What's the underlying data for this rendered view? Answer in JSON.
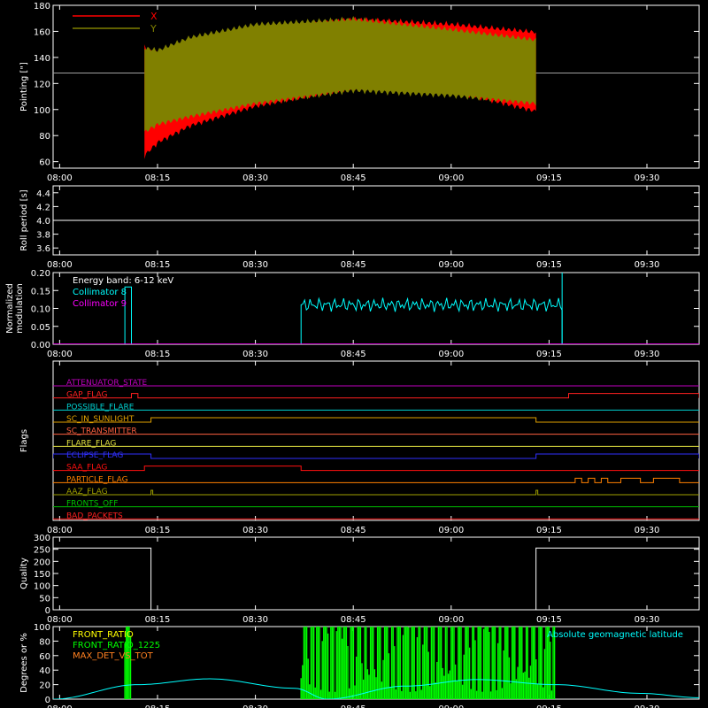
{
  "colors": {
    "background": "#000000",
    "axes": "#ffffff",
    "red": "#ff0000",
    "olive": "#808000",
    "cyan": "#00ffff",
    "magenta": "#ff00ff",
    "green": "#00ff00",
    "orange": "#ff8020",
    "yellow": "#ffff00",
    "blue": "#0000ff",
    "flag_purple": "#c000c0",
    "flag_red": "#ff2020",
    "flag_teal": "#00d0d0",
    "flag_amber": "#e0a000",
    "flag_salmon": "#ff6040",
    "flag_yellow": "#e0e040",
    "flag_blue": "#3030ff",
    "flag_orange": "#ff8000",
    "flag_olive": "#a0a000",
    "flag_green": "#00c000",
    "flag_red2": "#ff1010"
  },
  "time_ticks": [
    "08:00",
    "08:15",
    "08:30",
    "08:45",
    "09:00",
    "09:15",
    "09:30"
  ],
  "chart_data": [
    {
      "id": "pointing",
      "type": "area",
      "ylabel": "Pointing [\"]",
      "ylim": [
        55,
        180
      ],
      "yticks": [
        60,
        80,
        100,
        120,
        140,
        160,
        180
      ],
      "reference_line": 128,
      "legend_position": "top-left",
      "x_range": [
        "07:59",
        "09:38"
      ],
      "series": [
        {
          "name": "X",
          "color": "red",
          "x": [
            "08:13",
            "08:15",
            "08:20",
            "08:30",
            "08:45",
            "09:00",
            "09:13"
          ],
          "upper": [
            150,
            145,
            150,
            163,
            172,
            168,
            162
          ],
          "lower": [
            62,
            72,
            85,
            100,
            114,
            112,
            96
          ]
        },
        {
          "name": "Y",
          "color": "olive",
          "x": [
            "08:13",
            "08:15",
            "08:20",
            "08:30",
            "08:45",
            "09:00",
            "09:13"
          ],
          "upper": [
            150,
            148,
            158,
            168,
            172,
            164,
            156
          ],
          "lower": [
            80,
            86,
            92,
            102,
            112,
            108,
            102
          ]
        }
      ]
    },
    {
      "id": "roll",
      "type": "line",
      "ylabel": "Roll period [s]",
      "ylim": [
        3.5,
        4.5
      ],
      "yticks": [
        3.6,
        3.8,
        4.0,
        4.2,
        4.4
      ],
      "x_range": [
        "07:59",
        "09:38"
      ],
      "series": [
        {
          "name": "",
          "color": "axes",
          "x": [
            "07:59",
            "09:38"
          ],
          "y": [
            4.0,
            4.0
          ]
        }
      ]
    },
    {
      "id": "modulation",
      "type": "line",
      "ylabel": "Normalized modulation",
      "ylim": [
        0,
        0.2
      ],
      "yticks": [
        0.0,
        0.05,
        0.1,
        0.15,
        0.2
      ],
      "annotation": "Energy band: 6-12 keV",
      "x_range": [
        "07:59",
        "09:38"
      ],
      "series": [
        {
          "name": "Collimator 8",
          "color": "cyan",
          "segments": [
            {
              "x": [
                "08:10",
                "08:10",
                "08:11",
                "08:11"
              ],
              "y": [
                0,
                0.16,
                0.16,
                0
              ]
            },
            {
              "x": [
                "08:37",
                "08:37",
                "09:17",
                "09:17"
              ],
              "y": [
                0,
                0.11,
                0.11,
                0
              ]
            }
          ],
          "noise_amplitude": 0.02,
          "spike": {
            "x": "09:17",
            "y": 0.2
          }
        },
        {
          "name": "Collimator 9",
          "color": "magenta",
          "x": [
            "07:59",
            "09:38"
          ],
          "y": [
            0,
            0
          ]
        }
      ]
    },
    {
      "id": "flags",
      "type": "line",
      "ylabel": "Flags",
      "x_range": [
        "07:59",
        "09:38"
      ],
      "flags": [
        {
          "name": "ATTENUATOR_STATE",
          "color": "flag_purple",
          "steps": []
        },
        {
          "name": "GAP_FLAG",
          "color": "flag_red",
          "steps": [
            {
              "from": "08:11",
              "to": "08:12"
            },
            {
              "from": "09:18",
              "to": "09:38"
            }
          ]
        },
        {
          "name": "POSSIBLE_FLARE",
          "color": "flag_teal",
          "steps": []
        },
        {
          "name": "SC_IN_SUNLIGHT",
          "color": "flag_amber",
          "steps": [
            {
              "from": "08:14",
              "to": "09:13"
            }
          ]
        },
        {
          "name": "SC_TRANSMITTER",
          "color": "flag_salmon",
          "steps": []
        },
        {
          "name": "FLARE_FLAG",
          "color": "flag_yellow",
          "steps": []
        },
        {
          "name": "ECLIPSE_FLAG",
          "color": "flag_blue",
          "steps": [
            {
              "from": "07:59",
              "to": "08:14"
            },
            {
              "from": "09:13",
              "to": "09:38"
            }
          ]
        },
        {
          "name": "SAA_FLAG",
          "color": "flag_red2",
          "steps": [
            {
              "from": "08:13",
              "to": "08:37"
            }
          ]
        },
        {
          "name": "PARTICLE_FLAG",
          "color": "flag_orange",
          "steps": [
            {
              "from": "09:19",
              "to": "09:20"
            },
            {
              "from": "09:21",
              "to": "09:22"
            },
            {
              "from": "09:23",
              "to": "09:24"
            },
            {
              "from": "09:26",
              "to": "09:29"
            },
            {
              "from": "09:31",
              "to": "09:35"
            }
          ]
        },
        {
          "name": "AAZ_FLAG",
          "color": "flag_olive",
          "steps": [
            {
              "from": "08:14",
              "to": "08:14"
            },
            {
              "from": "09:13",
              "to": "09:13"
            }
          ]
        },
        {
          "name": "FRONTS_OFF",
          "color": "flag_green",
          "steps": []
        },
        {
          "name": "BAD_PACKETS",
          "color": "flag_red",
          "steps": []
        }
      ]
    },
    {
      "id": "quality",
      "type": "line",
      "ylabel": "Quality",
      "ylim": [
        0,
        300
      ],
      "yticks": [
        0,
        50,
        100,
        150,
        200,
        250,
        300
      ],
      "x_range": [
        "07:59",
        "09:38"
      ],
      "series": [
        {
          "name": "",
          "color": "axes",
          "x": [
            "07:59",
            "08:14",
            "08:14",
            "09:13",
            "09:13",
            "09:38"
          ],
          "y": [
            255,
            255,
            0,
            0,
            255,
            255
          ]
        }
      ]
    },
    {
      "id": "ratios",
      "type": "line",
      "ylabel": "Degrees or %",
      "ylim": [
        0,
        100
      ],
      "yticks": [
        0,
        20,
        40,
        60,
        80,
        100
      ],
      "x_range": [
        "07:59",
        "09:38"
      ],
      "legend_position": "top-left",
      "series": [
        {
          "name": "FRONT_RATIO",
          "color": "yellow"
        },
        {
          "name": "FRONT_RATIO_1225",
          "color": "green",
          "bands": [
            {
              "from": "08:10",
              "to": "08:11"
            },
            {
              "from": "08:37",
              "to": "09:16"
            }
          ]
        },
        {
          "name": "MAX_DET_VS_TOT",
          "color": "orange"
        },
        {
          "name": "Absolute geomagnetic latitude",
          "color": "cyan",
          "x": [
            "07:59",
            "08:12",
            "08:23",
            "08:36",
            "08:41",
            "08:53",
            "09:04",
            "09:16",
            "09:29",
            "09:38"
          ],
          "y": [
            0,
            20,
            28,
            15,
            0,
            18,
            27,
            20,
            8,
            2
          ]
        }
      ]
    }
  ]
}
